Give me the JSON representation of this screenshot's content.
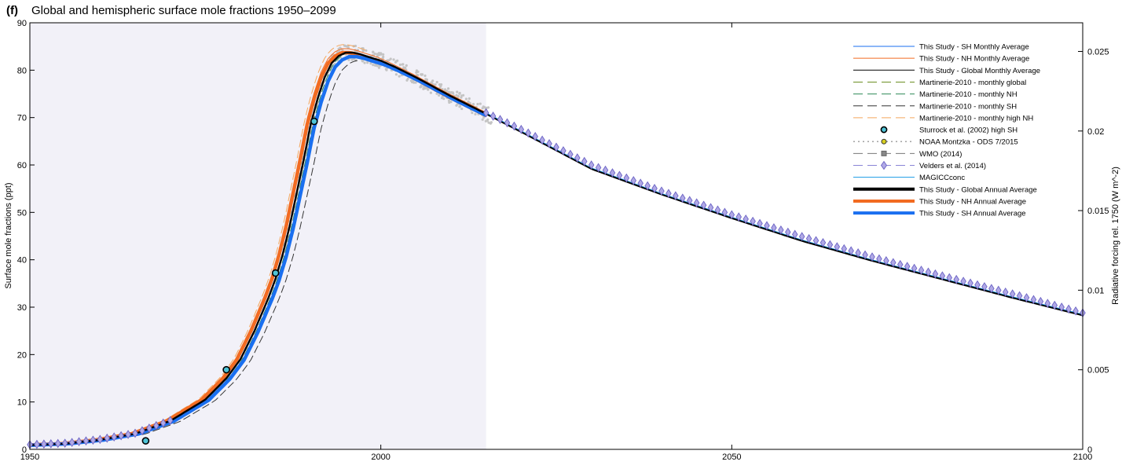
{
  "chart_data": {
    "type": "line",
    "panel_label": "(f)",
    "title": "Global and hemispheric surface mole fractions 1950–2099",
    "ylabel": "Surface mole fractions (ppt)",
    "y2label": "Radiative forcing rel. 1750 (W m^-2)",
    "xlim": [
      1950,
      2100
    ],
    "ylim": [
      0,
      90
    ],
    "y2lim": [
      0,
      0.0268
    ],
    "xticks": [
      1950,
      2000,
      2050,
      2100
    ],
    "yticks": [
      0,
      10,
      20,
      30,
      40,
      50,
      60,
      70,
      80,
      90
    ],
    "y2ticks": [
      "0.005",
      "0.01",
      "0.015",
      "0.02",
      "0.025"
    ],
    "y2tick_values": [
      0.005,
      0.01,
      0.015,
      0.02,
      0.025
    ],
    "shaded_region_x": [
      1950,
      2015
    ],
    "grid": false,
    "legend_position": "top-right",
    "legend": [
      {
        "label": "This Study - SH Monthly Average",
        "color": "#1a6ff0",
        "style": "thin"
      },
      {
        "label": "This Study - NH Monthly Average",
        "color": "#f26b21",
        "style": "thin"
      },
      {
        "label": "This Study - Global Monthly Average",
        "color": "#000000",
        "style": "thin"
      },
      {
        "label": "Martinerie-2010 - monthly global",
        "color": "#6b8e23",
        "style": "dash"
      },
      {
        "label": "Martinerie-2010 - monthly NH",
        "color": "#2e8b57",
        "style": "dash"
      },
      {
        "label": "Martinerie-2010 - monthly SH",
        "color": "#333333",
        "style": "dash"
      },
      {
        "label": "Martinerie-2010 - monthly high NH",
        "color": "#f5a75c",
        "style": "dash"
      },
      {
        "label": "Sturrock et al. (2002) high SH",
        "color": "#4fc3d6",
        "style": "circle"
      },
      {
        "label": "NOAA Montzka - ODS 7/2015",
        "color": "#999999",
        "style": "dotcircle"
      },
      {
        "label": "WMO (2014)",
        "color": "#777777",
        "style": "square"
      },
      {
        "label": "Velders et al. (2014)",
        "color": "#8a84d6",
        "style": "diamond"
      },
      {
        "label": "MAGICCconc",
        "color": "#1a9be6",
        "style": "thin"
      },
      {
        "label": "This Study - Global Annual Average",
        "color": "#000000",
        "style": "thick"
      },
      {
        "label": "This Study - NH Annual Average",
        "color": "#f26b21",
        "style": "thick"
      },
      {
        "label": "This Study - SH Annual Average",
        "color": "#1a6ff0",
        "style": "thick"
      }
    ],
    "series": [
      {
        "name": "This Study - Global Annual Average",
        "x": [
          1950,
          1955,
          1960,
          1965,
          1970,
          1975,
          1978,
          1980,
          1982,
          1984,
          1985,
          1986,
          1987,
          1988,
          1989,
          1990,
          1991,
          1992,
          1993,
          1994,
          1995,
          1996,
          1997,
          1998,
          2000,
          2002,
          2005,
          2010,
          2015,
          2020,
          2030,
          2040,
          2050,
          2060,
          2070,
          2080,
          2090,
          2100
        ],
        "y": [
          0.9,
          1.2,
          2.0,
          3.3,
          6.0,
          10.5,
          15.0,
          19.0,
          25.0,
          32.0,
          36.0,
          41.0,
          47.0,
          54.0,
          61.0,
          68.5,
          74.0,
          78.5,
          81.5,
          83.0,
          83.7,
          83.7,
          83.4,
          82.9,
          82.0,
          80.7,
          78.5,
          74.5,
          70.8,
          67.0,
          59.2,
          53.8,
          48.8,
          44.0,
          39.8,
          35.9,
          32.0,
          28.3
        ]
      },
      {
        "name": "Velders et al. (2014)",
        "x": [
          1950,
          1955,
          1960,
          1965,
          1970,
          2015,
          2020,
          2030,
          2040,
          2050,
          2060,
          2070,
          2080,
          2090,
          2100
        ],
        "y": [
          1.0,
          1.3,
          2.1,
          3.4,
          6.1,
          71.0,
          67.5,
          60.0,
          54.5,
          49.5,
          44.9,
          40.6,
          36.6,
          32.8,
          28.8
        ]
      },
      {
        "name": "Sturrock et al. (2002) high SH",
        "x": [
          1966.5,
          1978.0,
          1985.0,
          1990.5
        ],
        "y": [
          1.8,
          16.8,
          37.2,
          69.2
        ]
      }
    ]
  }
}
